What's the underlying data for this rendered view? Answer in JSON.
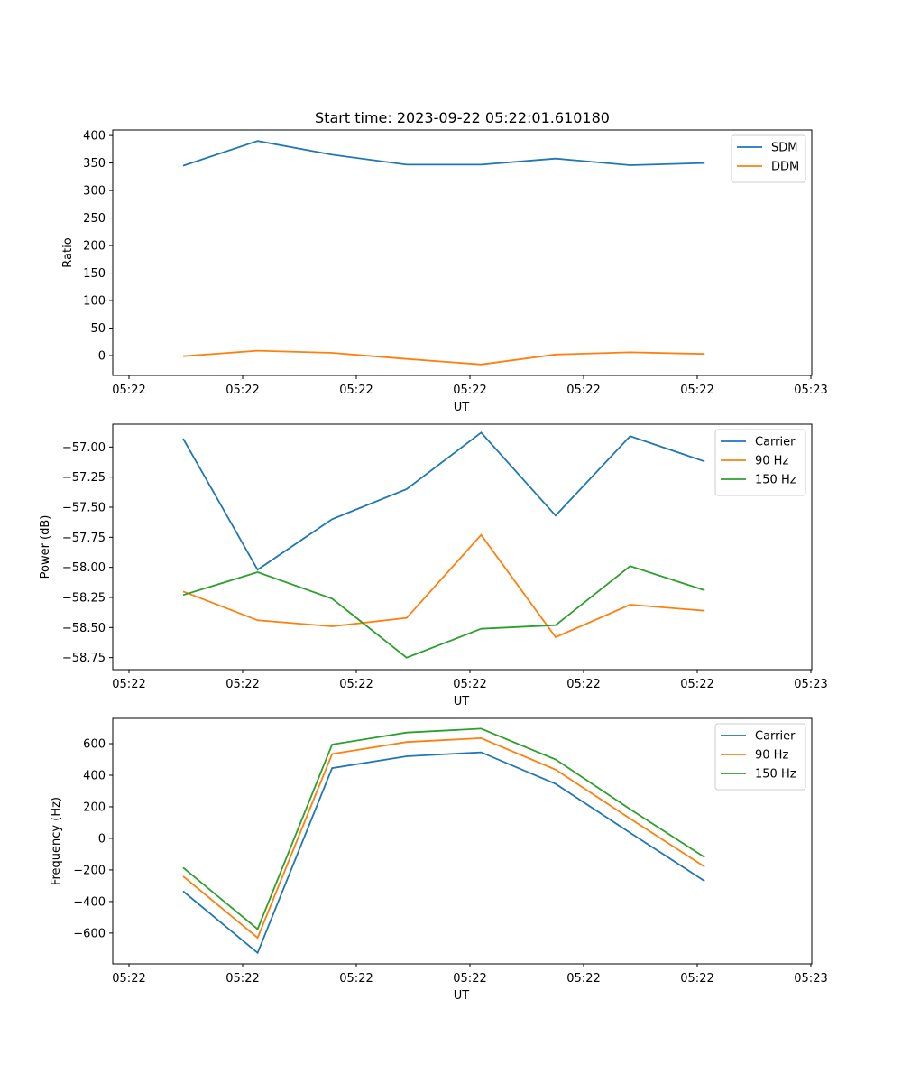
{
  "figure_title": "Start time: 2023-09-22 05:22:01.610180",
  "chart_data": [
    {
      "type": "line",
      "title": "Start time: 2023-09-22 05:22:01.610180",
      "xlabel": "UT",
      "ylabel": "Ratio",
      "x_tick_labels": [
        "05:22",
        "05:22",
        "05:22",
        "05:22",
        "05:22",
        "05:22",
        "05:23"
      ],
      "y_ticks": [
        0,
        50,
        100,
        150,
        200,
        250,
        300,
        350,
        400
      ],
      "y_tick_labels": [
        "0",
        "50",
        "100",
        "150",
        "200",
        "250",
        "300",
        "350",
        "400"
      ],
      "ylim": [
        -36,
        410
      ],
      "x": [
        1,
        2,
        3,
        4,
        5,
        6,
        7,
        8
      ],
      "series": [
        {
          "name": "SDM",
          "color": "#1f77b4",
          "values": [
            345,
            390,
            365,
            347,
            347,
            358,
            346,
            350
          ]
        },
        {
          "name": "DDM",
          "color": "#ff7f0e",
          "values": [
            -1,
            9,
            5,
            -6,
            -16,
            2,
            6,
            3
          ]
        }
      ],
      "legend_position": "top-right"
    },
    {
      "type": "line",
      "xlabel": "UT",
      "ylabel": "Power (dB)",
      "x_tick_labels": [
        "05:22",
        "05:22",
        "05:22",
        "05:22",
        "05:22",
        "05:22",
        "05:23"
      ],
      "y_ticks": [
        -58.75,
        -58.5,
        -58.25,
        -58.0,
        -57.75,
        -57.5,
        -57.25,
        -57.0
      ],
      "y_tick_labels": [
        "−58.75",
        "−58.50",
        "−58.25",
        "−58.00",
        "−57.75",
        "−57.50",
        "−57.25",
        "−57.00"
      ],
      "ylim": [
        -58.85,
        -56.81
      ],
      "x": [
        1,
        2,
        3,
        4,
        5,
        6,
        7,
        8
      ],
      "series": [
        {
          "name": "Carrier",
          "color": "#1f77b4",
          "values": [
            -56.93,
            -58.02,
            -57.6,
            -57.35,
            -56.88,
            -57.57,
            -56.91,
            -57.12
          ]
        },
        {
          "name": "90 Hz",
          "color": "#ff7f0e",
          "values": [
            -58.2,
            -58.44,
            -58.49,
            -58.42,
            -57.73,
            -58.58,
            -58.31,
            -58.36
          ]
        },
        {
          "name": "150 Hz",
          "color": "#2ca02c",
          "values": [
            -58.23,
            -58.04,
            -58.26,
            -58.75,
            -58.51,
            -58.48,
            -57.99,
            -58.19
          ]
        }
      ],
      "legend_position": "top-right"
    },
    {
      "type": "line",
      "xlabel": "UT",
      "ylabel": "Frequency (Hz)",
      "x_tick_labels": [
        "05:22",
        "05:22",
        "05:22",
        "05:22",
        "05:22",
        "05:22",
        "05:23"
      ],
      "y_ticks": [
        -600,
        -400,
        -200,
        0,
        200,
        400,
        600
      ],
      "y_tick_labels": [
        "−600",
        "−400",
        "−200",
        "0",
        "200",
        "400",
        "600"
      ],
      "ylim": [
        -795,
        760
      ],
      "x": [
        1,
        2,
        3,
        4,
        5,
        6,
        7,
        8
      ],
      "series": [
        {
          "name": "Carrier",
          "color": "#1f77b4",
          "values": [
            -335,
            -725,
            445,
            520,
            545,
            345,
            35,
            -270
          ]
        },
        {
          "name": "90 Hz",
          "color": "#ff7f0e",
          "values": [
            -240,
            -630,
            535,
            610,
            635,
            435,
            125,
            -180
          ]
        },
        {
          "name": "150 Hz",
          "color": "#2ca02c",
          "values": [
            -185,
            -575,
            595,
            670,
            695,
            500,
            185,
            -120
          ]
        }
      ],
      "legend_position": "top-right"
    }
  ]
}
